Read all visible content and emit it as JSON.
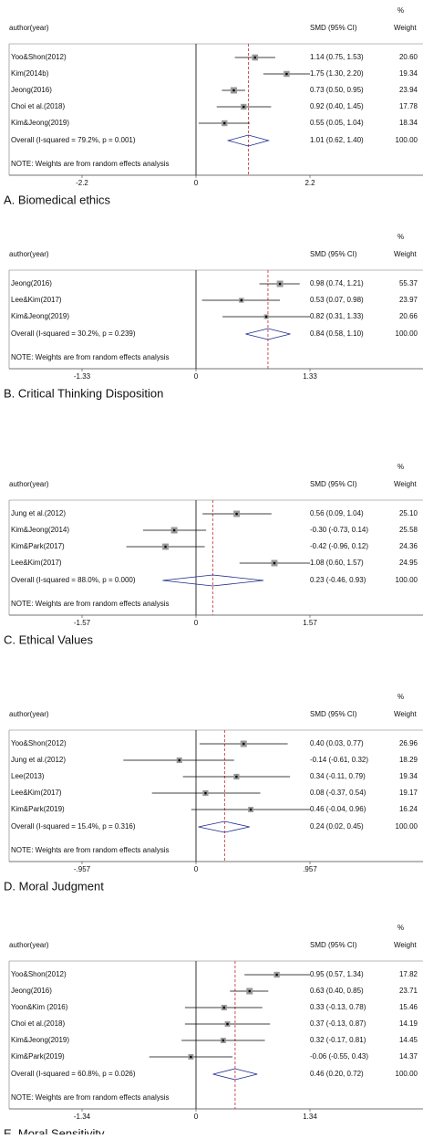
{
  "chart_data": [
    {
      "type": "forest",
      "caption": "A. Biomedical ethics",
      "label_header": "author(year)",
      "effect_header": "SMD (95% CI)",
      "weight_header_top": "%",
      "weight_header": "Weight",
      "studies": [
        "Yoo&Shon(2012)",
        "Kim(2014b)",
        "Jeong(2016)",
        "Choi et al.(2018)",
        "Kim&Jeong(2019)"
      ],
      "estimates": [
        1.14,
        1.75,
        0.73,
        0.92,
        0.55
      ],
      "lower": [
        0.75,
        1.3,
        0.5,
        0.4,
        0.05
      ],
      "upper": [
        1.53,
        2.2,
        0.95,
        1.45,
        1.04
      ],
      "value_labels": [
        "1.14 (0.75, 1.53)",
        "1.75 (1.30, 2.20)",
        "0.73 (0.50, 0.95)",
        "0.92 (0.40, 1.45)",
        "0.55 (0.05, 1.04)"
      ],
      "weights": [
        20.6,
        19.34,
        23.94,
        17.78,
        18.34
      ],
      "weight_labels": [
        "20.60",
        "19.34",
        "23.94",
        "17.78",
        "18.34"
      ],
      "overall": {
        "label": "Overall  (I-squared = 79.2%, p = 0.001)",
        "estimate": 1.01,
        "lower": 0.62,
        "upper": 1.4,
        "value_label": "1.01 (0.62, 1.40)",
        "weight": 100,
        "weight_label": "100.00"
      },
      "note": "NOTE: Weights are from random effects analysis",
      "xlim": [
        -2.2,
        2.2
      ],
      "xticks": [
        -2.2,
        0,
        2.2
      ]
    },
    {
      "type": "forest",
      "caption": "B. Critical Thinking Disposition",
      "label_header": "author(year)",
      "effect_header": "SMD (95% CI)",
      "weight_header_top": "%",
      "weight_header": "Weight",
      "studies": [
        "Jeong(2016)",
        "Lee&Kim(2017)",
        "Kim&Jeong(2019)"
      ],
      "estimates": [
        0.98,
        0.53,
        0.82
      ],
      "lower": [
        0.74,
        0.07,
        0.31
      ],
      "upper": [
        1.21,
        0.98,
        1.33
      ],
      "value_labels": [
        "0.98 (0.74, 1.21)",
        "0.53 (0.07, 0.98)",
        "0.82 (0.31, 1.33)"
      ],
      "weights": [
        55.37,
        23.97,
        20.66
      ],
      "weight_labels": [
        "55.37",
        "23.97",
        "20.66"
      ],
      "overall": {
        "label": "Overall  (I-squared = 30.2%, p = 0.239)",
        "estimate": 0.84,
        "lower": 0.58,
        "upper": 1.1,
        "value_label": "0.84 (0.58, 1.10)",
        "weight": 100,
        "weight_label": "100.00"
      },
      "note": "NOTE: Weights are from random effects analysis",
      "xlim": [
        -1.33,
        1.33
      ],
      "xticks": [
        -1.33,
        0,
        1.33
      ]
    },
    {
      "type": "forest",
      "caption": "C. Ethical Values",
      "label_header": "author(year)",
      "effect_header": "SMD (95% CI)",
      "weight_header_top": "%",
      "weight_header": "Weight",
      "studies": [
        "Jung et al.(2012)",
        "Kim&Jeong(2014)",
        "Kim&Park(2017)",
        "Lee&Kim(2017)"
      ],
      "estimates": [
        0.56,
        -0.3,
        -0.42,
        1.08
      ],
      "lower": [
        0.09,
        -0.73,
        -0.96,
        0.6
      ],
      "upper": [
        1.04,
        0.14,
        0.12,
        1.57
      ],
      "value_labels": [
        "0.56 (0.09, 1.04)",
        "-0.30 (-0.73, 0.14)",
        "-0.42 (-0.96, 0.12)",
        "1.08 (0.60, 1.57)"
      ],
      "weights": [
        25.1,
        25.58,
        24.36,
        24.95
      ],
      "weight_labels": [
        "25.10",
        "25.58",
        "24.36",
        "24.95"
      ],
      "overall": {
        "label": "Overall  (I-squared = 88.0%, p = 0.000)",
        "estimate": 0.23,
        "lower": -0.46,
        "upper": 0.93,
        "value_label": "0.23 (-0.46, 0.93)",
        "weight": 100,
        "weight_label": "100.00"
      },
      "note": "NOTE: Weights are from random effects analysis",
      "xlim": [
        -1.57,
        1.57
      ],
      "xticks": [
        -1.57,
        0,
        1.57
      ]
    },
    {
      "type": "forest",
      "caption": "D. Moral Judgment",
      "label_header": "author(year)",
      "effect_header": "SMD (95% CI)",
      "weight_header_top": "%",
      "weight_header": "Weight",
      "studies": [
        "Yoo&Shon(2012)",
        "Jung et al.(2012)",
        "Lee(2013)",
        "Lee&Kim(2017)",
        "Kim&Park(2019)"
      ],
      "estimates": [
        0.4,
        -0.14,
        0.34,
        0.08,
        0.46
      ],
      "lower": [
        0.03,
        -0.61,
        -0.11,
        -0.37,
        -0.04
      ],
      "upper": [
        0.77,
        0.32,
        0.79,
        0.54,
        0.96
      ],
      "value_labels": [
        "0.40 (0.03, 0.77)",
        "-0.14 (-0.61, 0.32)",
        "0.34 (-0.11, 0.79)",
        "0.08 (-0.37, 0.54)",
        "0.46 (-0.04, 0.96)"
      ],
      "weights": [
        26.96,
        18.29,
        19.34,
        19.17,
        16.24
      ],
      "weight_labels": [
        "26.96",
        "18.29",
        "19.34",
        "19.17",
        "16.24"
      ],
      "overall": {
        "label": "Overall  (I-squared = 15.4%, p = 0.316)",
        "estimate": 0.24,
        "lower": 0.02,
        "upper": 0.45,
        "value_label": "0.24 (0.02, 0.45)",
        "weight": 100,
        "weight_label": "100.00"
      },
      "note": "NOTE: Weights are from random effects analysis",
      "xlim": [
        -0.957,
        0.957
      ],
      "xticks": [
        {
          "value": -0.957,
          "label": "-.957"
        },
        0,
        {
          "value": 0.957,
          "label": ".957"
        }
      ]
    },
    {
      "type": "forest",
      "caption": "E. Moral Sensitivity",
      "label_header": "author(year)",
      "effect_header": "SMD (95% CI)",
      "weight_header_top": "%",
      "weight_header": "Weight",
      "studies": [
        "Yoo&Shon(2012)",
        "Jeong(2016)",
        "Yoon&Kim (2016)",
        "Choi et al.(2018)",
        "Kim&Jeong(2019)",
        "Kim&Park(2019)"
      ],
      "estimates": [
        0.95,
        0.63,
        0.33,
        0.37,
        0.32,
        -0.06
      ],
      "lower": [
        0.57,
        0.4,
        -0.13,
        -0.13,
        -0.17,
        -0.55
      ],
      "upper": [
        1.34,
        0.85,
        0.78,
        0.87,
        0.81,
        0.43
      ],
      "value_labels": [
        "0.95 (0.57, 1.34)",
        "0.63 (0.40, 0.85)",
        "0.33 (-0.13, 0.78)",
        "0.37 (-0.13, 0.87)",
        "0.32 (-0.17, 0.81)",
        "-0.06 (-0.55, 0.43)"
      ],
      "weights": [
        17.82,
        23.71,
        15.46,
        14.19,
        14.45,
        14.37
      ],
      "weight_labels": [
        "17.82",
        "23.71",
        "15.46",
        "14.19",
        "14.45",
        "14.37"
      ],
      "overall": {
        "label": "Overall  (I-squared = 60.8%, p = 0.026)",
        "estimate": 0.46,
        "lower": 0.2,
        "upper": 0.72,
        "value_label": "0.46 (0.20, 0.72)",
        "weight": 100,
        "weight_label": "100.00"
      },
      "note": "NOTE: Weights are from random effects analysis",
      "xlim": [
        -1.34,
        1.34
      ],
      "xticks": [
        -1.34,
        0,
        1.34
      ]
    }
  ]
}
